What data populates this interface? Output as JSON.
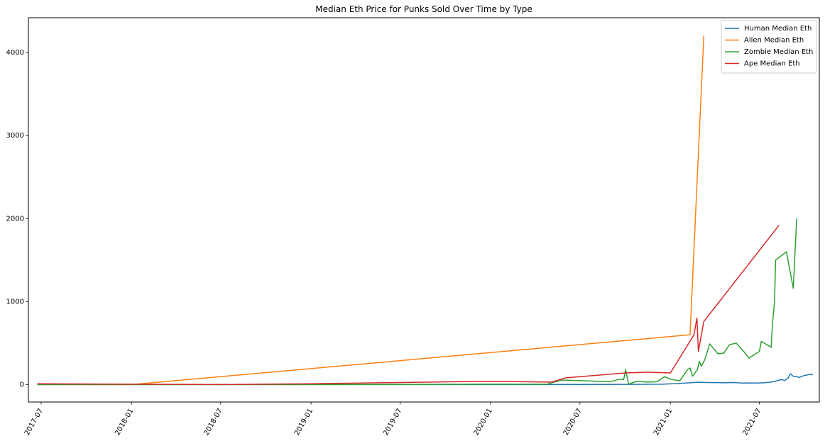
{
  "chart_data": {
    "type": "line",
    "title": "Median Eth Price for Punks Sold Over Time by Type",
    "xlabel": "",
    "ylabel": "",
    "xlim": [
      "2017-06-05",
      "2021-10-31"
    ],
    "ylim": [
      -210,
      4420
    ],
    "x_ticks": [
      "2017-07",
      "2018-01",
      "2018-07",
      "2019-01",
      "2019-07",
      "2020-01",
      "2020-07",
      "2021-01",
      "2021-07"
    ],
    "y_ticks": [
      0,
      1000,
      2000,
      3000,
      4000
    ],
    "grid": false,
    "legend_position": "top-right",
    "series": [
      {
        "name": "Human Median Eth",
        "color": "#1f77b4",
        "points": [
          [
            "2017-06-23",
            0
          ],
          [
            "2017-09-01",
            0
          ],
          [
            "2018-01-01",
            0
          ],
          [
            "2018-07-01",
            0
          ],
          [
            "2019-01-01",
            0
          ],
          [
            "2019-07-01",
            0
          ],
          [
            "2020-01-01",
            0
          ],
          [
            "2020-07-01",
            1
          ],
          [
            "2020-10-01",
            2
          ],
          [
            "2020-12-15",
            5
          ],
          [
            "2021-01-15",
            12
          ],
          [
            "2021-02-10",
            22
          ],
          [
            "2021-02-25",
            28
          ],
          [
            "2021-03-15",
            25
          ],
          [
            "2021-04-01",
            24
          ],
          [
            "2021-04-20",
            22
          ],
          [
            "2021-05-10",
            25
          ],
          [
            "2021-05-25",
            18
          ],
          [
            "2021-06-10",
            20
          ],
          [
            "2021-06-25",
            18
          ],
          [
            "2021-07-10",
            22
          ],
          [
            "2021-07-25",
            30
          ],
          [
            "2021-08-05",
            45
          ],
          [
            "2021-08-15",
            60
          ],
          [
            "2021-08-22",
            50
          ],
          [
            "2021-08-28",
            75
          ],
          [
            "2021-09-02",
            130
          ],
          [
            "2021-09-08",
            100
          ],
          [
            "2021-09-15",
            95
          ],
          [
            "2021-09-20",
            85
          ],
          [
            "2021-09-26",
            100
          ],
          [
            "2021-10-01",
            110
          ],
          [
            "2021-10-06",
            115
          ],
          [
            "2021-10-11",
            125
          ],
          [
            "2021-10-15",
            118
          ],
          [
            "2021-10-18",
            128
          ]
        ]
      },
      {
        "name": "Alien Median Eth",
        "color": "#ff7f0e",
        "points": [
          [
            "2017-06-23",
            0
          ],
          [
            "2018-01-01",
            0
          ],
          [
            "2021-02-10",
            600
          ],
          [
            "2021-03-10",
            4200
          ]
        ]
      },
      {
        "name": "Zombie Median Eth",
        "color": "#2ca02c",
        "points": [
          [
            "2017-06-23",
            0
          ],
          [
            "2018-01-01",
            0
          ],
          [
            "2019-01-01",
            0
          ],
          [
            "2020-01-01",
            5
          ],
          [
            "2020-04-25",
            5
          ],
          [
            "2020-05-25",
            55
          ],
          [
            "2020-09-01",
            35
          ],
          [
            "2020-09-20",
            65
          ],
          [
            "2020-09-28",
            60
          ],
          [
            "2020-10-02",
            180
          ],
          [
            "2020-10-08",
            5
          ],
          [
            "2020-10-25",
            40
          ],
          [
            "2020-11-15",
            30
          ],
          [
            "2020-12-05",
            35
          ],
          [
            "2020-12-20",
            95
          ],
          [
            "2021-01-01",
            65
          ],
          [
            "2021-01-20",
            45
          ],
          [
            "2021-02-05",
            180
          ],
          [
            "2021-02-10",
            200
          ],
          [
            "2021-02-15",
            100
          ],
          [
            "2021-02-25",
            180
          ],
          [
            "2021-03-01",
            280
          ],
          [
            "2021-03-05",
            220
          ],
          [
            "2021-03-12",
            300
          ],
          [
            "2021-03-22",
            490
          ],
          [
            "2021-04-08",
            370
          ],
          [
            "2021-04-20",
            380
          ],
          [
            "2021-05-01",
            480
          ],
          [
            "2021-05-15",
            500
          ],
          [
            "2021-05-30",
            400
          ],
          [
            "2021-06-10",
            320
          ],
          [
            "2021-07-01",
            400
          ],
          [
            "2021-07-05",
            520
          ],
          [
            "2021-07-25",
            450
          ],
          [
            "2021-07-28",
            760
          ],
          [
            "2021-08-01",
            1000
          ],
          [
            "2021-08-03",
            1500
          ],
          [
            "2021-08-25",
            1600
          ],
          [
            "2021-09-08",
            1160
          ],
          [
            "2021-09-15",
            2000
          ]
        ]
      },
      {
        "name": "Ape Median Eth",
        "color": "#d62728",
        "points": [
          [
            "2017-06-23",
            10
          ],
          [
            "2018-01-01",
            5
          ],
          [
            "2018-07-01",
            0
          ],
          [
            "2019-01-01",
            10
          ],
          [
            "2019-07-01",
            25
          ],
          [
            "2020-01-01",
            40
          ],
          [
            "2020-05-05",
            30
          ],
          [
            "2020-06-01",
            80
          ],
          [
            "2020-10-01",
            140
          ],
          [
            "2020-11-15",
            150
          ],
          [
            "2021-01-01",
            140
          ],
          [
            "2021-02-18",
            600
          ],
          [
            "2021-02-24",
            800
          ],
          [
            "2021-02-27",
            400
          ],
          [
            "2021-03-10",
            760
          ],
          [
            "2021-08-10",
            1920
          ]
        ]
      }
    ]
  }
}
